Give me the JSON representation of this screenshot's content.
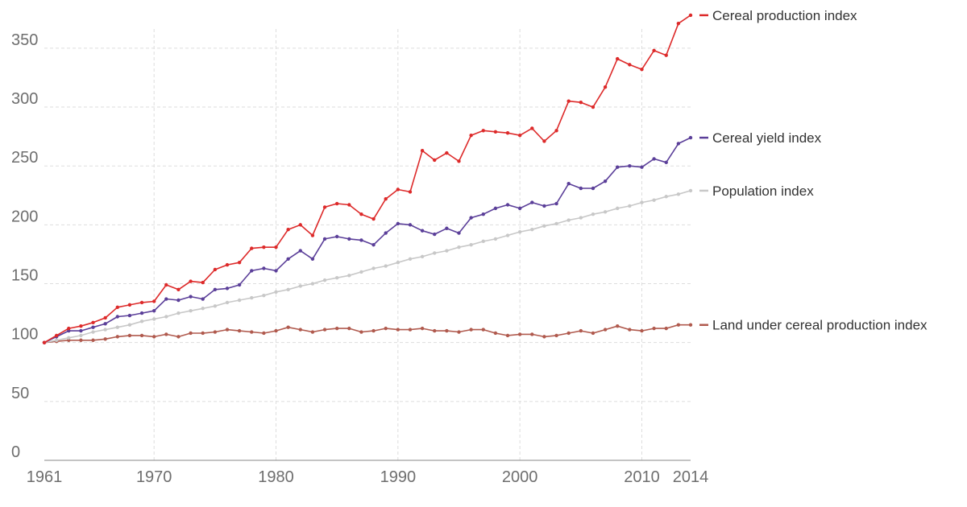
{
  "chart_data": {
    "type": "line",
    "title": "",
    "xlabel": "",
    "ylabel": "",
    "xlim": [
      1961,
      2014
    ],
    "ylim": [
      0,
      380
    ],
    "x_ticks": [
      1961,
      1970,
      1980,
      1990,
      2000,
      2010,
      2014
    ],
    "y_ticks": [
      0,
      50,
      100,
      150,
      200,
      250,
      300,
      350
    ],
    "grid": true,
    "legend": "inline-right",
    "x": [
      1961,
      1962,
      1963,
      1964,
      1965,
      1966,
      1967,
      1968,
      1969,
      1970,
      1971,
      1972,
      1973,
      1974,
      1975,
      1976,
      1977,
      1978,
      1979,
      1980,
      1981,
      1982,
      1983,
      1984,
      1985,
      1986,
      1987,
      1988,
      1989,
      1990,
      1991,
      1992,
      1993,
      1994,
      1995,
      1996,
      1997,
      1998,
      1999,
      2000,
      2001,
      2002,
      2003,
      2004,
      2005,
      2006,
      2007,
      2008,
      2009,
      2010,
      2011,
      2012,
      2013,
      2014
    ],
    "series": [
      {
        "name": "Cereal production index",
        "color": "#dd2a2a",
        "values": [
          100,
          106,
          112,
          114,
          117,
          121,
          130,
          132,
          134,
          135,
          149,
          145,
          152,
          151,
          162,
          166,
          168,
          180,
          181,
          181,
          196,
          200,
          191,
          215,
          218,
          217,
          209,
          205,
          222,
          230,
          228,
          263,
          255,
          261,
          254,
          276,
          280,
          279,
          278,
          276,
          282,
          271,
          280,
          305,
          304,
          300,
          317,
          341,
          336,
          332,
          348,
          344,
          371,
          378
        ]
      },
      {
        "name": "Cereal yield index",
        "color": "#5b3f99",
        "values": [
          100,
          105,
          110,
          110,
          113,
          116,
          122,
          123,
          125,
          127,
          137,
          136,
          139,
          137,
          145,
          146,
          149,
          161,
          163,
          161,
          171,
          178,
          171,
          188,
          190,
          188,
          187,
          183,
          193,
          201,
          200,
          195,
          192,
          197,
          193,
          206,
          209,
          214,
          217,
          214,
          219,
          216,
          218,
          235,
          231,
          231,
          237,
          249,
          250,
          249,
          256,
          253,
          269,
          274
        ]
      },
      {
        "name": "Population index",
        "color": "#c8c8c8",
        "values": [
          100,
          102,
          104,
          106,
          109,
          111,
          113,
          115,
          118,
          120,
          122,
          125,
          127,
          129,
          131,
          134,
          136,
          138,
          140,
          143,
          145,
          148,
          150,
          153,
          155,
          157,
          160,
          163,
          165,
          168,
          171,
          173,
          176,
          178,
          181,
          183,
          186,
          188,
          191,
          194,
          196,
          199,
          201,
          204,
          206,
          209,
          211,
          214,
          216,
          219,
          221,
          224,
          226,
          229
        ]
      },
      {
        "name": "Land under cereal production index",
        "color": "#b05a4e",
        "values": [
          100,
          101,
          102,
          102,
          102,
          103,
          105,
          106,
          106,
          105,
          107,
          105,
          108,
          108,
          109,
          111,
          110,
          109,
          108,
          110,
          113,
          111,
          109,
          111,
          112,
          112,
          109,
          110,
          112,
          111,
          111,
          112,
          110,
          110,
          109,
          111,
          111,
          108,
          106,
          107,
          107,
          105,
          106,
          108,
          110,
          108,
          111,
          114,
          111,
          110,
          112,
          112,
          115,
          115
        ]
      }
    ]
  }
}
